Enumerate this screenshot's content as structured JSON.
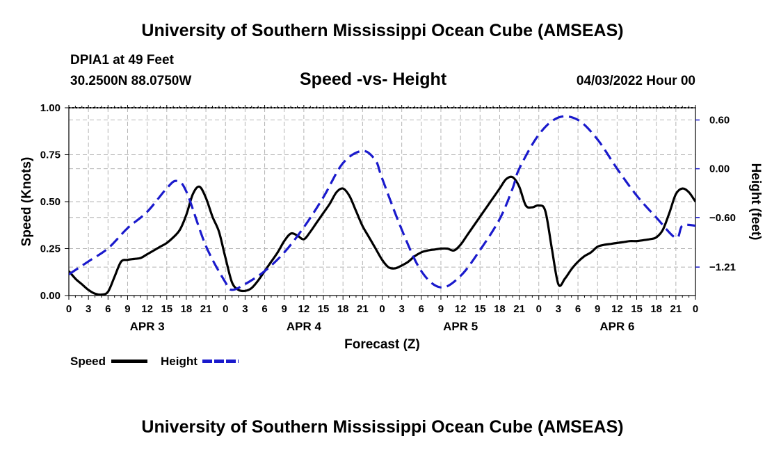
{
  "header": {
    "title": "University of Southern Mississippi Ocean Cube (AMSEAS)",
    "station": "DPIA1 at 49 Feet",
    "coords": "30.2500N  88.0750W",
    "chart_title": "Speed -vs- Height",
    "datetime": "04/03/2022 Hour 00"
  },
  "footer": {
    "title": "University of Southern Mississippi Ocean Cube (AMSEAS)"
  },
  "legend": {
    "speed_label": "Speed",
    "height_label": "Height"
  },
  "colors": {
    "speed": "#000000",
    "height": "#1a1acc",
    "grid": "#b4b4b4"
  },
  "chart_data": {
    "type": "line",
    "xlabel": "Forecast (Z)",
    "ylabel_left": "Speed (Knots)",
    "ylabel_right": "Height (feet)",
    "x_range": [
      0,
      96
    ],
    "ylim_left": [
      0,
      1.0
    ],
    "ylim_right": [
      -1.56,
      0.75
    ],
    "x_ticks": [
      0,
      3,
      6,
      9,
      12,
      15,
      18,
      21,
      24,
      27,
      30,
      33,
      36,
      39,
      42,
      45,
      48,
      51,
      54,
      57,
      60,
      63,
      66,
      69,
      72,
      75,
      78,
      81,
      84,
      87,
      90,
      93,
      96
    ],
    "x_tick_labels": [
      "0",
      "3",
      "6",
      "9",
      "12",
      "15",
      "18",
      "21",
      "0",
      "3",
      "6",
      "9",
      "12",
      "15",
      "18",
      "21",
      "0",
      "3",
      "6",
      "9",
      "12",
      "15",
      "18",
      "21",
      "0",
      "3",
      "6",
      "9",
      "12",
      "15",
      "18",
      "21",
      "0"
    ],
    "day_labels": [
      {
        "label": "APR 3",
        "x": 12
      },
      {
        "label": "APR 4",
        "x": 36
      },
      {
        "label": "APR 5",
        "x": 60
      },
      {
        "label": "APR 6",
        "x": 84
      }
    ],
    "y_left_ticks": [
      0,
      0.25,
      0.5,
      0.75,
      1.0
    ],
    "y_left_tick_labels": [
      "0.00",
      "0.25",
      "0.50",
      "0.75",
      "1.00"
    ],
    "y_right_ticks": [
      0.6,
      0.0,
      -0.6,
      -1.21
    ],
    "y_right_tick_labels": [
      "0.60",
      "0.00",
      "−0.60",
      "−1.21"
    ],
    "series": [
      {
        "name": "Speed",
        "axis": "left",
        "style": "solid",
        "x": [
          0,
          1,
          2,
          3,
          4,
          5,
          6,
          7,
          8,
          9,
          10,
          11,
          12,
          13,
          14,
          15,
          16,
          17,
          18,
          19,
          20,
          21,
          22,
          23,
          24,
          25,
          26,
          27,
          28,
          29,
          30,
          31,
          32,
          33,
          34,
          35,
          36,
          37,
          38,
          39,
          40,
          41,
          42,
          43,
          44,
          45,
          46,
          47,
          48,
          49,
          50,
          51,
          52,
          53,
          54,
          55,
          56,
          57,
          58,
          59,
          60,
          61,
          62,
          63,
          64,
          65,
          66,
          67,
          68,
          69,
          70,
          71,
          72,
          73,
          74,
          75,
          76,
          77,
          78,
          79,
          80,
          81,
          82,
          83,
          84,
          85,
          86,
          87,
          88,
          89,
          90,
          91,
          92,
          93,
          94,
          95,
          96
        ],
        "values": [
          0.13,
          0.09,
          0.06,
          0.03,
          0.01,
          0.005,
          0.02,
          0.1,
          0.18,
          0.19,
          0.195,
          0.2,
          0.22,
          0.24,
          0.26,
          0.28,
          0.31,
          0.35,
          0.43,
          0.54,
          0.58,
          0.52,
          0.42,
          0.34,
          0.2,
          0.07,
          0.03,
          0.025,
          0.04,
          0.08,
          0.13,
          0.18,
          0.23,
          0.29,
          0.33,
          0.32,
          0.3,
          0.34,
          0.39,
          0.44,
          0.49,
          0.55,
          0.57,
          0.53,
          0.45,
          0.37,
          0.31,
          0.25,
          0.19,
          0.15,
          0.145,
          0.16,
          0.18,
          0.21,
          0.23,
          0.24,
          0.245,
          0.25,
          0.25,
          0.24,
          0.27,
          0.32,
          0.37,
          0.42,
          0.47,
          0.52,
          0.57,
          0.62,
          0.63,
          0.58,
          0.48,
          0.47,
          0.48,
          0.45,
          0.25,
          0.06,
          0.09,
          0.14,
          0.18,
          0.21,
          0.23,
          0.26,
          0.27,
          0.275,
          0.28,
          0.285,
          0.29,
          0.29,
          0.295,
          0.3,
          0.31,
          0.35,
          0.44,
          0.54,
          0.57,
          0.55,
          0.5
        ]
      },
      {
        "name": "Height",
        "axis": "right",
        "style": "dashed",
        "x": [
          0,
          3,
          6,
          9,
          12,
          15,
          16.5,
          18,
          21,
          24,
          25,
          27,
          30,
          33,
          36,
          39,
          42,
          45,
          47,
          48,
          51,
          54,
          57,
          60,
          63,
          66,
          68,
          69,
          72,
          75,
          78,
          81,
          84,
          87,
          90,
          93,
          94,
          96
        ],
        "values": [
          -1.3,
          -1.14,
          -0.98,
          -0.73,
          -0.53,
          -0.24,
          -0.15,
          -0.28,
          -0.95,
          -1.4,
          -1.49,
          -1.42,
          -1.26,
          -1.03,
          -0.72,
          -0.35,
          0.07,
          0.22,
          0.1,
          -0.12,
          -0.75,
          -1.26,
          -1.46,
          -1.32,
          -1.0,
          -0.62,
          -0.24,
          0.0,
          0.42,
          0.63,
          0.6,
          0.36,
          0.0,
          -0.33,
          -0.6,
          -0.85,
          -0.7,
          -0.7
        ]
      }
    ]
  }
}
